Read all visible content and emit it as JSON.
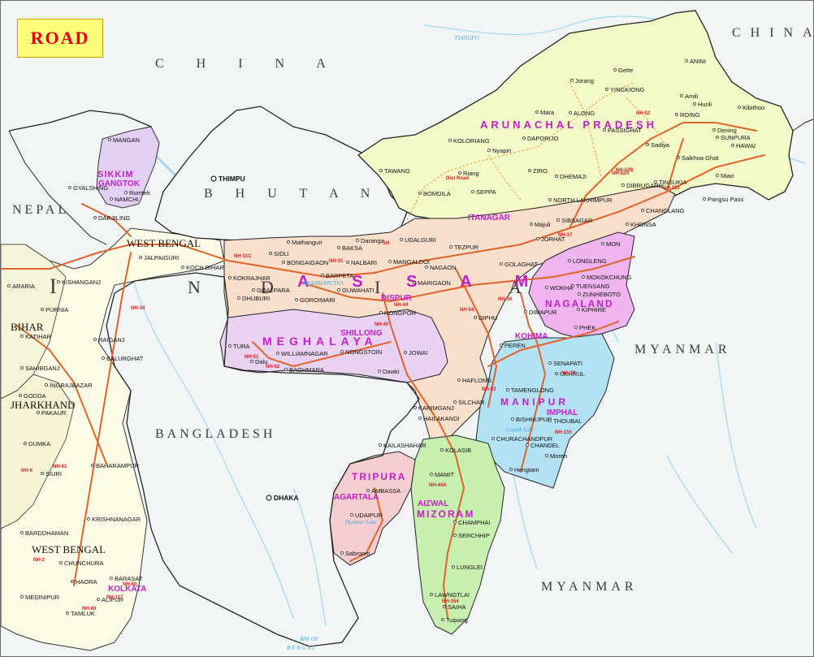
{
  "title": "ROAD",
  "colors": {
    "background": "#eef6f8",
    "assam": "#f9dfcc",
    "arunachal": "#f4f9c8",
    "nagaland": "#f0b4f0",
    "manipur": "#b4e2f5",
    "mizoram": "#c8f0b0",
    "tripura": "#f5cdd0",
    "meghalaya": "#ead2f3",
    "sikkim": "#e3cff3",
    "westbengal": "#fdfce6",
    "road": "#e0642a",
    "state_label": "#c21fc9",
    "border": "#333333"
  },
  "countries": {
    "china_north": "C H I N A",
    "china_ne": "CHINA",
    "bhutan": "B H U T A N",
    "nepal": "NEPAL",
    "bangladesh": "BANGLADESH",
    "myanmar_right": "MYANMAR",
    "myanmar_lower": "MYANMAR",
    "india_letters": [
      "I",
      "N",
      "D",
      "I",
      "A"
    ]
  },
  "states": {
    "arunachal": "ARUNACHAL PRADESH",
    "assam": "A S S A M",
    "nagaland": "NAGALAND",
    "manipur": "MANIPUR",
    "mizoram": "MIZORAM",
    "tripura": "TRIPURA",
    "meghalaya": "MEGHALAYA",
    "sikkim": "SIKKIM",
    "bihar": "BIHAR",
    "jharkhand": "JHARKHAND",
    "westbengal_north": "WEST BENGAL",
    "westbengal_south": "WEST BENGAL"
  },
  "capitals": {
    "itanagar": "ITANAGAR",
    "dispur": "DISPUR",
    "kohima": "KOHIMA",
    "imphal": "IMPHAL",
    "aizwal": "AIZWAL",
    "agartala": "AGARTALA",
    "shillong": "SHILLONG",
    "gangtok": "GANGTOK",
    "kolkata": "KOLKATA"
  },
  "foreign_capitals": {
    "thimpu": "THIMPU",
    "dhaka": "DHAKA"
  },
  "cities": [
    "ANINI",
    "Gette",
    "Jorang",
    "YINGKIONG",
    "Amili",
    "Hunli",
    "Kibithoo",
    "Mara",
    "ALONG",
    "ROING",
    "DAPORIJO",
    "KOLORIANG",
    "PASSIGHAT",
    "Dening",
    "SUNPURA",
    "HAWAI",
    "Nyapin",
    "Sadiya",
    "Saikhoa Ghat",
    "ZIRO",
    "TAWANG",
    "Riang",
    "BOMDILA",
    "SEPPA",
    "DHEMAJI",
    "DIBRUGARH",
    "TINSUKIA",
    "Miao",
    "NORTH LAKHIMPUR",
    "Pangsu Pass",
    "Majuli",
    "SIBSAGAR",
    "CHANGLANG",
    "KHONSA",
    "JORHAT",
    "TEZPUR",
    "UDALGURI",
    "Daranga",
    "BAKSA",
    "Mathanguri",
    "SIDLI",
    "BONGAIGAON",
    "NALBARI",
    "MANGALDOI",
    "NAGAON",
    "GOLAGHAT",
    "MON",
    "LONGLENG",
    "MOKOKCHUNG",
    "TUENSANG",
    "ZUNHEBOTO",
    "WOKHA",
    "KIPHIRE",
    "PHEK",
    "DIMAPUR",
    "DIPHU",
    "MARIGAON",
    "NONGPOH",
    "GUWAHATI",
    "BARPETA",
    "KOKRAJHAR",
    "DHUBURI",
    "GOALPARA",
    "GOROIMARI",
    "TURA",
    "Dalu",
    "WILLIAMNAGAR",
    "NONGSTOIN",
    "JOWAI",
    "Dawki",
    "BAGHMARA",
    "PEREN",
    "SENAPATI",
    "UKHRUL",
    "TAMENGLONG",
    "BISHNUPUR",
    "THOUBAL",
    "CHURACHANDPUR",
    "CHANDEL",
    "Moreh",
    "Hengtam",
    "HAFLONG",
    "SILCHAR",
    "KARIMGANJ",
    "HAILAKANDI",
    "KAILASHAHAR",
    "KOLASIB",
    "MAMIT",
    "CHAMPHAI",
    "SERCHHIP",
    "LUNGLEI",
    "LAWNGTLAI",
    "SAIHA",
    "Tuipang",
    "AMBASSA",
    "UDAIPUR",
    "Sabroom",
    "MANGAN",
    "GYALSHING",
    "NAMCHI",
    "Rumtek",
    "DARJILING",
    "JALPAIGURI",
    "KOCH BIHAR",
    "KISHANGANJ",
    "ARARIA",
    "PURNIA",
    "KATIHAR",
    "RAIGANJ",
    "BALURGHAT",
    "SAHIBGANJ",
    "INGRAJBAZAR",
    "GODDA",
    "PAKAUR",
    "DUMKA",
    "BAHARAMPUR",
    "SIURI",
    "KRISHNANAGAR",
    "BARDDHAMAN",
    "CHUNCHURA",
    "BARASAT",
    "HAORA",
    "MEDINIPUR",
    "ALIPUR",
    "TAMLUK"
  ],
  "water_labels": {
    "tsangpo": "TSANGPO",
    "brahmaputra": "BRAHMAPUTRA",
    "logtak": "Logtak Lake",
    "dumbur": "Dumbur Lake",
    "bay1": "BAY OF",
    "bay2": "B E N G A L"
  },
  "route_labels": [
    "NH-52",
    "NH-52A",
    "NH-52B",
    "NH-153",
    "NH-37",
    "NH-31C",
    "NH-31",
    "NH-51",
    "NH-62",
    "NH-44",
    "NH-54",
    "NH-53",
    "NH-39",
    "NH-150",
    "NH-44A",
    "NH-154",
    "NH-36",
    "NH-40",
    "NH-34",
    "NH-81",
    "NH-80",
    "NH-60",
    "NH-6",
    "NH-2",
    "NH-117",
    "SH",
    "Dist Road"
  ]
}
